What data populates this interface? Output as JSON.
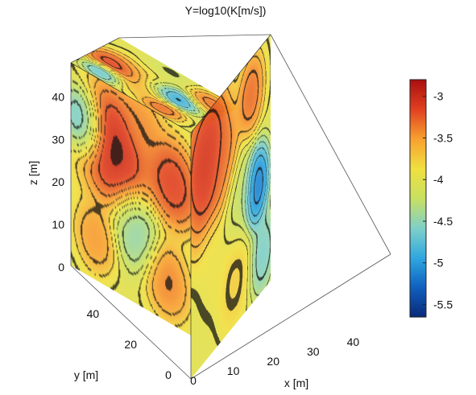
{
  "chart_data": {
    "type": "heatmap",
    "title": "Y=log10(K[m/s])",
    "xlabel": "x [m]",
    "ylabel": "y [m]",
    "zlabel": "z [m]",
    "x_ticks": [
      "0",
      "10",
      "20",
      "30",
      "40"
    ],
    "y_ticks": [
      "0",
      "20",
      "40"
    ],
    "z_ticks": [
      "0",
      "10",
      "20",
      "30",
      "40"
    ],
    "xlim": [
      0,
      50
    ],
    "ylim": [
      0,
      50
    ],
    "zlim": [
      0,
      48
    ],
    "colorbar": {
      "ticks": [
        "-3",
        "-3.5",
        "-4",
        "-4.5",
        "-5",
        "-5.5"
      ],
      "tick_values": [
        -3,
        -3.5,
        -4,
        -4.5,
        -5,
        -5.5
      ],
      "range": [
        -5.65,
        -2.8
      ],
      "colormap": [
        "#0a2a78",
        "#1060c0",
        "#30a8e0",
        "#80d0c8",
        "#c8e060",
        "#f0e040",
        "#f8a030",
        "#e04020",
        "#a81010"
      ]
    },
    "blobs": {
      "top": [
        {
          "u": 0.52,
          "v": 0.65,
          "r": 0.16,
          "val": -5.2
        },
        {
          "u": 0.45,
          "v": 0.22,
          "r": 0.18,
          "val": -2.9
        },
        {
          "u": 0.18,
          "v": 0.2,
          "r": 0.12,
          "val": -4.9
        },
        {
          "u": 0.75,
          "v": 0.85,
          "r": 0.15,
          "val": -3.2
        },
        {
          "u": 0.15,
          "v": 0.7,
          "r": 0.12,
          "val": -3.2
        },
        {
          "u": 0.6,
          "v": 0.4,
          "r": 0.2,
          "val": -3.8
        },
        {
          "u": 0.85,
          "v": 0.45,
          "r": 0.15,
          "val": -4.2
        },
        {
          "u": 0.3,
          "v": 0.45,
          "r": 0.15,
          "val": -3.6
        }
      ],
      "front": [
        {
          "u": 0.82,
          "v": 0.55,
          "r": 0.12,
          "val": -5.4
        },
        {
          "u": 0.2,
          "v": 0.2,
          "r": 0.22,
          "val": -2.9
        },
        {
          "u": 0.42,
          "v": 0.3,
          "r": 0.14,
          "val": -3.3
        },
        {
          "u": 0.6,
          "v": 0.5,
          "r": 0.15,
          "val": -4.3
        },
        {
          "u": 0.55,
          "v": 0.8,
          "r": 0.15,
          "val": -3.7
        },
        {
          "u": 0.3,
          "v": 0.65,
          "r": 0.14,
          "val": -3.9
        },
        {
          "u": 0.75,
          "v": 0.15,
          "r": 0.12,
          "val": -3.2
        },
        {
          "u": 0.9,
          "v": 0.85,
          "r": 0.12,
          "val": -4.7
        }
      ],
      "left": [
        {
          "u": 0.35,
          "v": 0.3,
          "r": 0.22,
          "val": -2.85
        },
        {
          "u": 0.1,
          "v": 0.25,
          "r": 0.12,
          "val": -5.0
        },
        {
          "u": 0.55,
          "v": 0.65,
          "r": 0.14,
          "val": -4.6
        },
        {
          "u": 0.8,
          "v": 0.8,
          "r": 0.14,
          "val": -3.3
        },
        {
          "u": 0.85,
          "v": 0.3,
          "r": 0.16,
          "val": -3.0
        },
        {
          "u": 0.2,
          "v": 0.8,
          "r": 0.12,
          "val": -3.4
        },
        {
          "u": 0.6,
          "v": 0.1,
          "r": 0.12,
          "val": -3.4
        }
      ]
    }
  }
}
